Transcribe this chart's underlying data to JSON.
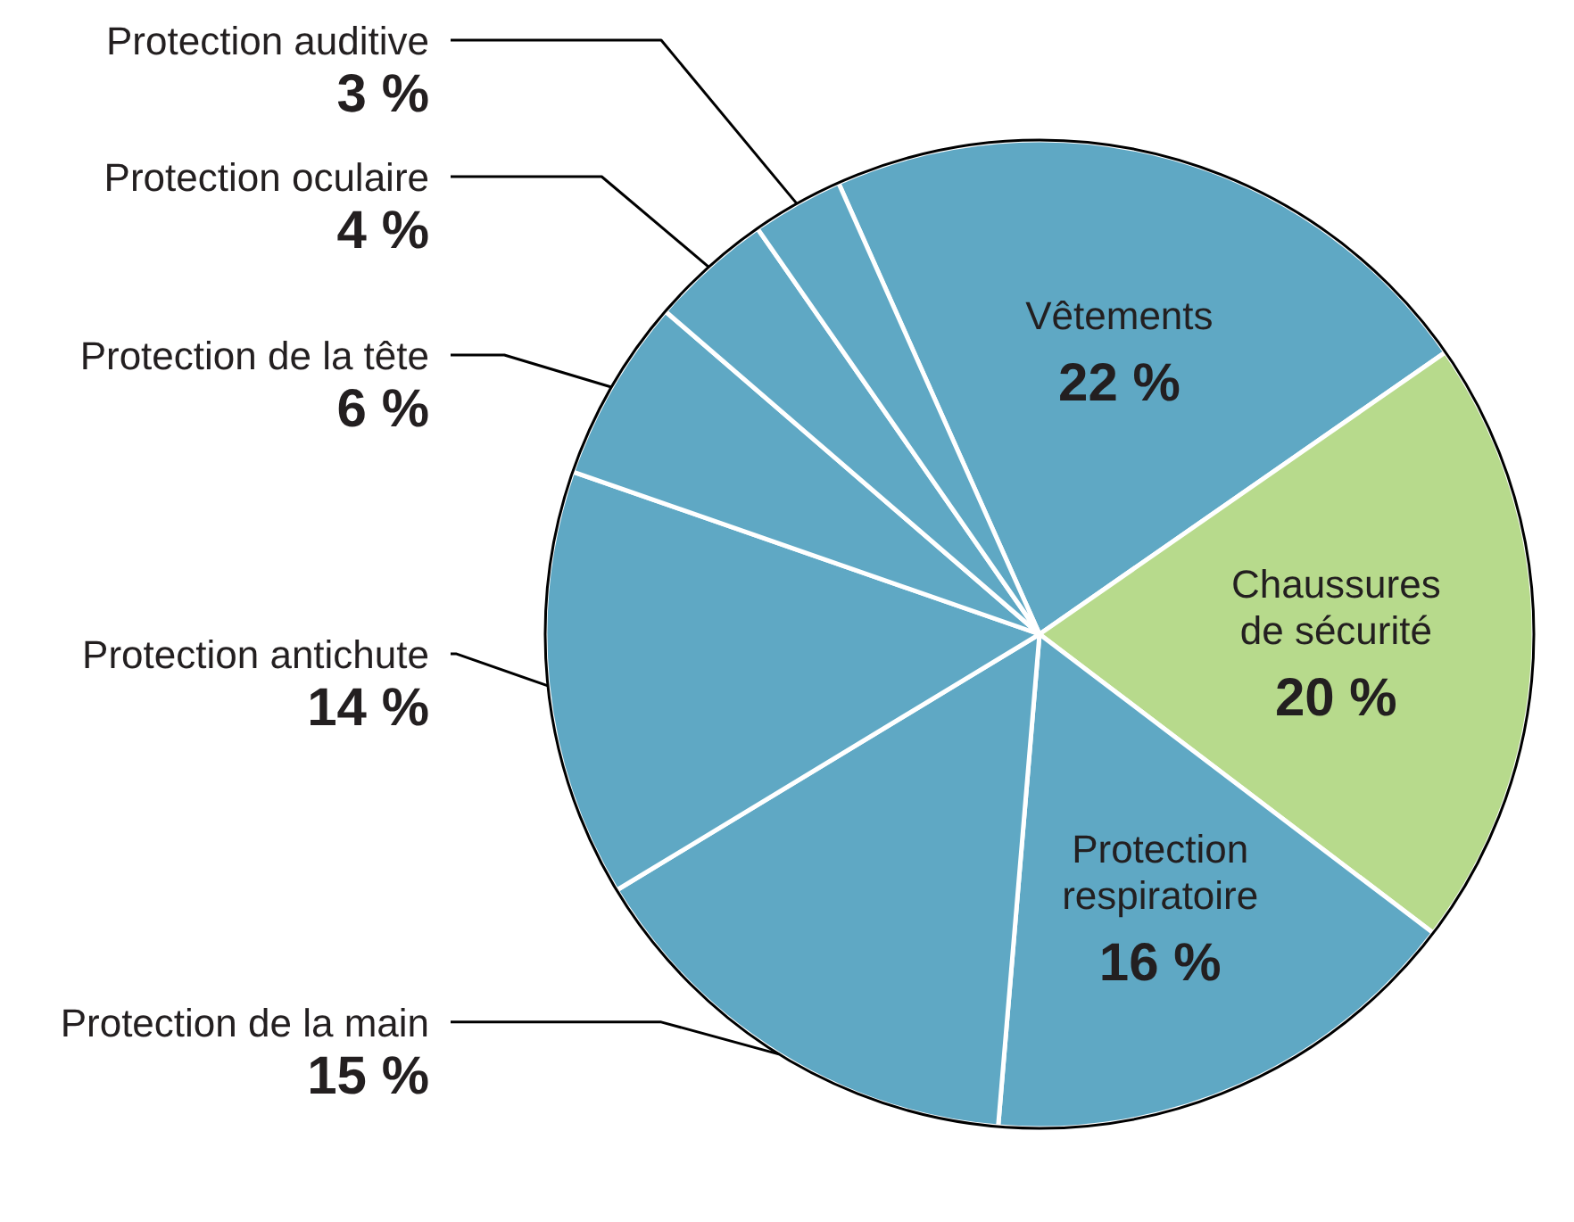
{
  "chart_data": {
    "type": "pie",
    "categories": [
      "Vêtements",
      "Chaussures\nde sécurité",
      "Protection\nrespiratoire",
      "Protection de la main",
      "Protection antichute",
      "Protection de la tête",
      "Protection oculaire",
      "Protection auditive"
    ],
    "values": [
      22,
      20,
      16,
      15,
      14,
      6,
      4,
      3
    ],
    "value_labels": [
      "22 %",
      "20 %",
      "16 %",
      "15 %",
      "14 %",
      "6 %",
      "4 %",
      "3 %"
    ],
    "colors": [
      "#5fa8c4",
      "#b7da8c",
      "#5fa8c4",
      "#5fa8c4",
      "#5fa8c4",
      "#5fa8c4",
      "#5fa8c4",
      "#5fa8c4"
    ]
  }
}
